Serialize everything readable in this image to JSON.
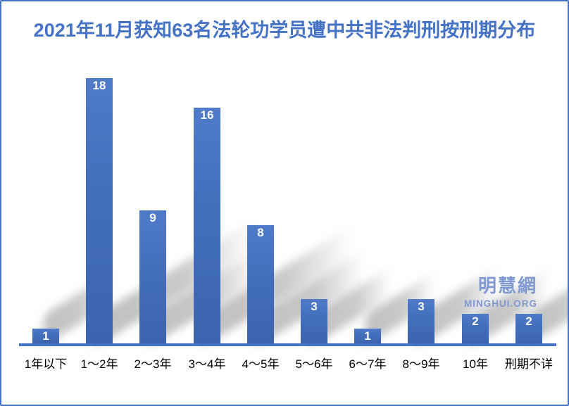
{
  "chart_data": {
    "type": "bar",
    "title": "2021年11月获知63名法轮功学员遭中共非法判刑按刑期分布",
    "categories": [
      "1年以下",
      "1～2年",
      "2～3年",
      "3～4年",
      "4～5年",
      "5～6年",
      "6～7年",
      "8～9年",
      "10年",
      "刑期不详"
    ],
    "values": [
      1,
      18,
      9,
      16,
      8,
      3,
      1,
      3,
      2,
      2
    ],
    "xlabel": "",
    "ylabel": "",
    "ylim": [
      0,
      18
    ],
    "grid": false,
    "legend": false,
    "data_labels_position": "inside-top",
    "data_labels_color": "#ffffff",
    "bar_color": "#4470bc",
    "axis_line_color": "#4472c4",
    "category_label_color": "#000000"
  },
  "title_color": "#4472c4",
  "frame": {
    "border_color": "#4472c4",
    "background_color": "#ffffff"
  },
  "watermark": {
    "cn": "明慧網",
    "en": "MINGHUI.ORG",
    "color": "#8199d1"
  }
}
